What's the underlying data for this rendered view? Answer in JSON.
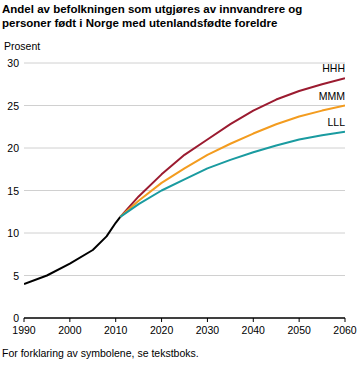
{
  "chart_data": {
    "type": "line",
    "title": "Andel av befolkningen som utgjøres av innvandrere og personer født i Norge med utenlandsfødte foreldre",
    "y_label": "Prosent",
    "annotations": [
      "For forklaring av symbolene, se tekstboks."
    ],
    "x": [
      1990,
      1995,
      2000,
      2005,
      2008,
      2010,
      2011,
      2015,
      2020,
      2025,
      2030,
      2035,
      2040,
      2045,
      2050,
      2055,
      2060
    ],
    "series": [
      {
        "color": "#000000",
        "values": [
          4.0,
          5.0,
          6.4,
          8.0,
          9.6,
          11.2,
          11.9,
          null,
          null,
          null,
          null,
          null,
          null,
          null,
          null,
          null,
          null
        ]
      },
      {
        "name": "HHH",
        "color": "#9b1b30",
        "values": [
          null,
          null,
          null,
          null,
          null,
          null,
          11.9,
          14.3,
          16.9,
          19.2,
          21.0,
          22.8,
          24.4,
          25.7,
          26.7,
          27.5,
          28.2
        ]
      },
      {
        "name": "MMM",
        "color": "#f39c1f",
        "values": [
          null,
          null,
          null,
          null,
          null,
          null,
          11.9,
          13.8,
          15.9,
          17.6,
          19.2,
          20.5,
          21.7,
          22.8,
          23.7,
          24.4,
          25.0
        ]
      },
      {
        "name": "LLL",
        "color": "#1a9ba0",
        "values": [
          null,
          null,
          null,
          null,
          null,
          null,
          11.9,
          13.4,
          15.0,
          16.3,
          17.6,
          18.6,
          19.5,
          20.3,
          21.0,
          21.5,
          21.9
        ]
      }
    ],
    "xlim": [
      1990,
      2060
    ],
    "xticks": [
      1990,
      2000,
      2010,
      2020,
      2030,
      2040,
      2050,
      2060
    ],
    "ylim": [
      0,
      30
    ],
    "yticks": [
      0,
      5,
      10,
      15,
      20,
      25,
      30
    ],
    "grid": true
  }
}
